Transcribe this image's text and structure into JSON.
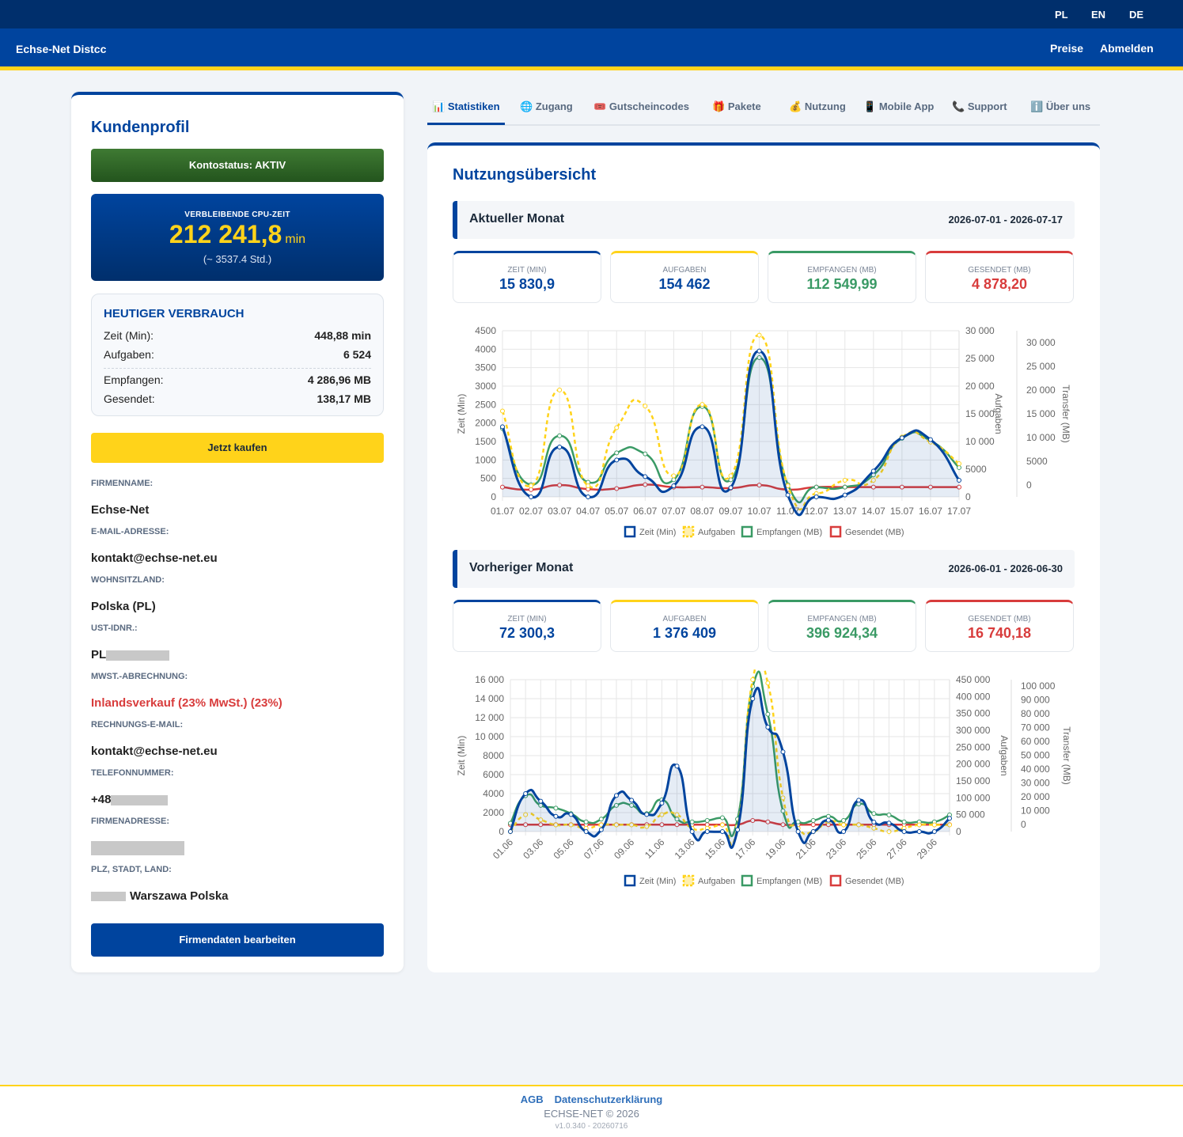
{
  "header": {
    "languages": [
      "PL",
      "EN",
      "DE"
    ],
    "brand": "Echse-Net Distcc",
    "nav": {
      "prices": "Preise",
      "logout": "Abmelden"
    }
  },
  "sidebar": {
    "title": "Kundenprofil",
    "account_status": "Kontostatus: AKTIV",
    "cpu": {
      "label": "VERBLEIBENDE CPU-ZEIT",
      "value": "212 241,8",
      "unit": "min",
      "hours": "(~ 3537.4 Std.)"
    },
    "today": {
      "title": "HEUTIGER VERBRAUCH",
      "rows": [
        {
          "label": "Zeit (Min):",
          "value": "448,88 min"
        },
        {
          "label": "Aufgaben:",
          "value": "6 524"
        },
        {
          "label": "Empfangen:",
          "value": "4 286,96 MB"
        },
        {
          "label": "Gesendet:",
          "value": "138,17 MB"
        }
      ]
    },
    "buy_button": "Jetzt kaufen",
    "fields": [
      {
        "label": "FIRMENNAME:",
        "value": "Echse-Net"
      },
      {
        "label": "E-MAIL-ADRESSE:",
        "value": "kontakt@echse-net.eu"
      },
      {
        "label": "WOHNSITZLAND:",
        "value": "Polska (PL)"
      },
      {
        "label": "UST-IDNR.:",
        "value": "PL"
      },
      {
        "label": "MWST.-ABRECHNUNG:",
        "value": "Inlandsverkauf (23% MwSt.) (23%)"
      },
      {
        "label": "RECHNUNGS-E-MAIL:",
        "value": "kontakt@echse-net.eu"
      },
      {
        "label": "TELEFONNUMMER:",
        "value": "+48"
      },
      {
        "label": "FIRMENADRESSE:",
        "value": ""
      },
      {
        "label": "PLZ, STADT, LAND:",
        "value": "Warszawa Polska"
      }
    ],
    "edit_button": "Firmendaten bearbeiten"
  },
  "tabs": [
    {
      "icon": "📊",
      "label": "Statistiken",
      "icon_name": "bar-chart-icon",
      "active": true
    },
    {
      "icon": "🌐",
      "label": "Zugang",
      "icon_name": "globe-icon"
    },
    {
      "icon": "🎟️",
      "label": "Gutscheincodes",
      "icon_name": "ticket-icon"
    },
    {
      "icon": "🎁",
      "label": "Pakete",
      "icon_name": "gift-icon"
    },
    {
      "icon": "💰",
      "label": "Nutzung",
      "icon_name": "money-bag-icon"
    },
    {
      "icon": "📱",
      "label": "Mobile App",
      "icon_name": "phone-icon"
    },
    {
      "icon": "📞",
      "label": "Support",
      "icon_name": "telephone-icon"
    },
    {
      "icon": "ℹ️",
      "label": "Über uns",
      "icon_name": "info-icon"
    }
  ],
  "main": {
    "title": "Nutzungsübersicht",
    "current": {
      "title": "Aktueller Monat",
      "range": "2026-07-01 - 2026-07-17",
      "cards": [
        {
          "label": "ZEIT (MIN)",
          "value": "15 830,9"
        },
        {
          "label": "AUFGABEN",
          "value": "154 462"
        },
        {
          "label": "EMPFANGEN (MB)",
          "value": "112 549,99"
        },
        {
          "label": "GESENDET (MB)",
          "value": "4 878,20"
        }
      ]
    },
    "previous": {
      "title": "Vorheriger Monat",
      "range": "2026-06-01 - 2026-06-30",
      "cards": [
        {
          "label": "ZEIT (MIN)",
          "value": "72 300,3"
        },
        {
          "label": "AUFGABEN",
          "value": "1 376 409"
        },
        {
          "label": "EMPFANGEN (MB)",
          "value": "396 924,34"
        },
        {
          "label": "GESENDET (MB)",
          "value": "16 740,18"
        }
      ]
    }
  },
  "colors": {
    "primary": "#00449e",
    "accent": "#ffd31a",
    "green": "#3a9a65",
    "red": "#d83c3c",
    "dark": "#002f6c"
  },
  "chart_data": [
    {
      "type": "line",
      "x": [
        "01.07",
        "02.07",
        "03.07",
        "04.07",
        "05.07",
        "06.07",
        "07.07",
        "08.07",
        "09.07",
        "10.07",
        "11.07",
        "12.07",
        "13.07",
        "14.07",
        "15.07",
        "16.07",
        "17.07"
      ],
      "series": [
        {
          "name": "Zeit (Min)",
          "axis": "Zeit (Min)",
          "values": [
            1900,
            0,
            1350,
            0,
            1000,
            550,
            300,
            1900,
            250,
            3950,
            50,
            0,
            50,
            700,
            1600,
            1550,
            450
          ]
        },
        {
          "name": "Aufgaben",
          "axis": "Aufgaben",
          "values": [
            15500,
            2000,
            19300,
            2000,
            12500,
            16400,
            3800,
            16700,
            3800,
            29200,
            2000,
            600,
            3000,
            3000,
            10800,
            9900,
            6000
          ]
        },
        {
          "name": "Empfangen (MB)",
          "axis": "Transfer (MB)",
          "values": [
            12000,
            500,
            10500,
            1000,
            7000,
            6800,
            1500,
            16500,
            1500,
            26500,
            500,
            0,
            0,
            2500,
            10000,
            9500,
            4000
          ]
        },
        {
          "name": "Gesendet (MB)",
          "axis": "Transfer (MB)",
          "values": [
            0,
            -500,
            400,
            -400,
            -300,
            500,
            0,
            0,
            -200,
            400,
            -500,
            0,
            0,
            0,
            0,
            0,
            0
          ]
        }
      ],
      "axes": {
        "left": {
          "label": "Zeit (Min)",
          "range": [
            0,
            4500
          ],
          "ticks": [
            "0",
            "500",
            "1000",
            "1500",
            "2000",
            "2500",
            "3000",
            "3500",
            "4000",
            "4500"
          ]
        },
        "right1": {
          "label": "Aufgaben",
          "range": [
            0,
            30000
          ],
          "ticks": [
            "0",
            "5000",
            "10 000",
            "15 000",
            "20 000",
            "25 000",
            "30 000"
          ]
        },
        "right2": {
          "label": "Transfer (MB)",
          "range": [
            -2000,
            32000
          ],
          "ticks": [
            "0",
            "5000",
            "10 000",
            "15 000",
            "20 000",
            "25 000",
            "30 000"
          ]
        }
      },
      "legend": {
        "position": "bottom",
        "entries": [
          "Zeit (Min)",
          "Aufgaben",
          "Empfangen (MB)",
          "Gesendet (MB)"
        ]
      },
      "grid": true
    },
    {
      "type": "line",
      "x": [
        "01.06",
        "02.06",
        "03.06",
        "04.06",
        "05.06",
        "06.06",
        "07.06",
        "08.06",
        "09.06",
        "10.06",
        "11.06",
        "12.06",
        "13.06",
        "14.06",
        "15.06",
        "16.06",
        "17.06",
        "18.06",
        "19.06",
        "20.06",
        "21.06",
        "22.06",
        "23.06",
        "24.06",
        "25.06",
        "26.06",
        "27.06",
        "28.06",
        "29.06",
        "30.06"
      ],
      "x_ticks": [
        "01.06",
        "03.06",
        "05.06",
        "07.06",
        "09.06",
        "11.06",
        "13.06",
        "15.06",
        "17.06",
        "19.06",
        "21.06",
        "23.06",
        "25.06",
        "27.06",
        "29.06"
      ],
      "series": [
        {
          "name": "Zeit (Min)",
          "axis": "Zeit (Min)",
          "values": [
            0,
            4000,
            3200,
            1600,
            1800,
            0,
            200,
            3800,
            3300,
            1800,
            3000,
            6900,
            0,
            0,
            0,
            200,
            14000,
            11000,
            8400,
            0,
            0,
            1200,
            0,
            3300,
            1000,
            900,
            0,
            0,
            0,
            1400
          ]
        },
        {
          "name": "Aufgaben",
          "axis": "Aufgaben",
          "values": [
            0,
            50000,
            35000,
            20000,
            20000,
            10000,
            20000,
            20000,
            20000,
            15000,
            50000,
            50000,
            10000,
            10000,
            20000,
            15000,
            450000,
            440000,
            100000,
            10000,
            0,
            30000,
            20000,
            20000,
            10000,
            0,
            10000,
            20000,
            20000,
            20000
          ]
        },
        {
          "name": "Empfangen (MB)",
          "axis": "Transfer (MB)",
          "values": [
            1000,
            21000,
            14000,
            12000,
            8000,
            2000,
            4000,
            14000,
            14000,
            8000,
            18000,
            4000,
            2000,
            3000,
            5000,
            4000,
            100000,
            80000,
            10000,
            2000,
            3000,
            6000,
            3000,
            15000,
            8000,
            7000,
            2000,
            2000,
            2000,
            7000
          ]
        },
        {
          "name": "Gesendet (MB)",
          "axis": "Transfer (MB)",
          "values": [
            0,
            0,
            0,
            0,
            0,
            0,
            0,
            0,
            0,
            0,
            0,
            0,
            0,
            0,
            0,
            0,
            3000,
            2000,
            0,
            0,
            0,
            0,
            0,
            0,
            0,
            0,
            0,
            0,
            0,
            0
          ]
        }
      ],
      "axes": {
        "left": {
          "label": "Zeit (Min)",
          "range": [
            0,
            16000
          ],
          "ticks": [
            "0",
            "2000",
            "4000",
            "6000",
            "8000",
            "10 000",
            "12 000",
            "14 000",
            "16 000"
          ]
        },
        "right1": {
          "label": "Aufgaben",
          "range": [
            0,
            450000
          ],
          "ticks": [
            "0",
            "50 000",
            "100 000",
            "150 000",
            "200 000",
            "250 000",
            "300 000",
            "350 000",
            "400 000",
            "450 000"
          ]
        },
        "right2": {
          "label": "Transfer (MB)",
          "range": [
            -5000,
            105000
          ],
          "ticks": [
            "0",
            "10 000",
            "20 000",
            "30 000",
            "40 000",
            "50 000",
            "60 000",
            "70 000",
            "80 000",
            "90 000",
            "100 000"
          ]
        }
      },
      "legend": {
        "position": "bottom",
        "entries": [
          "Zeit (Min)",
          "Aufgaben",
          "Empfangen (MB)",
          "Gesendet (MB)"
        ]
      },
      "grid": true
    }
  ],
  "footer": {
    "agb": "AGB",
    "privacy": "Datenschutzerklärung",
    "copyright": "ECHSE-NET © 2026",
    "version": "v1.0.340 - 20260716"
  }
}
